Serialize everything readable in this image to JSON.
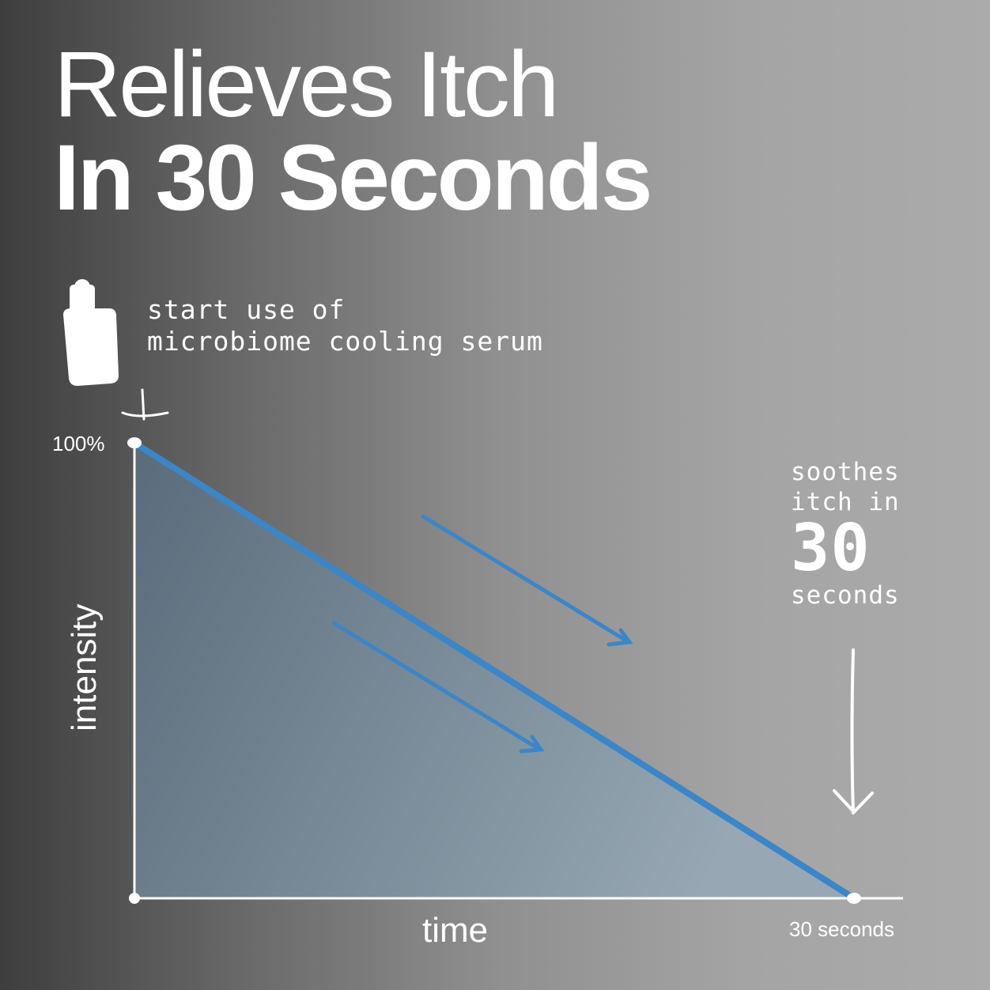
{
  "title": {
    "line1": "Relieves Itch",
    "line2": "In 30 Seconds"
  },
  "annotations": {
    "start_line1": "start use of",
    "start_line2": "microbiome cooling serum",
    "end_line1": "soothes",
    "end_line2": "itch in",
    "end_big": "30",
    "end_line3": "seconds"
  },
  "icons": {
    "product": "serum-bottle-icon"
  },
  "colors": {
    "line": "#3a86c8",
    "fill": "#5f7385",
    "axis": "#ffffff"
  },
  "chart_data": {
    "type": "area",
    "xlabel": "time",
    "ylabel": "intensity",
    "ytick": "100%",
    "xtick": "30 seconds",
    "x": [
      0,
      30
    ],
    "y": [
      100,
      0
    ],
    "xlim": [
      0,
      30
    ],
    "ylim": [
      0,
      100
    ],
    "grid": false
  }
}
